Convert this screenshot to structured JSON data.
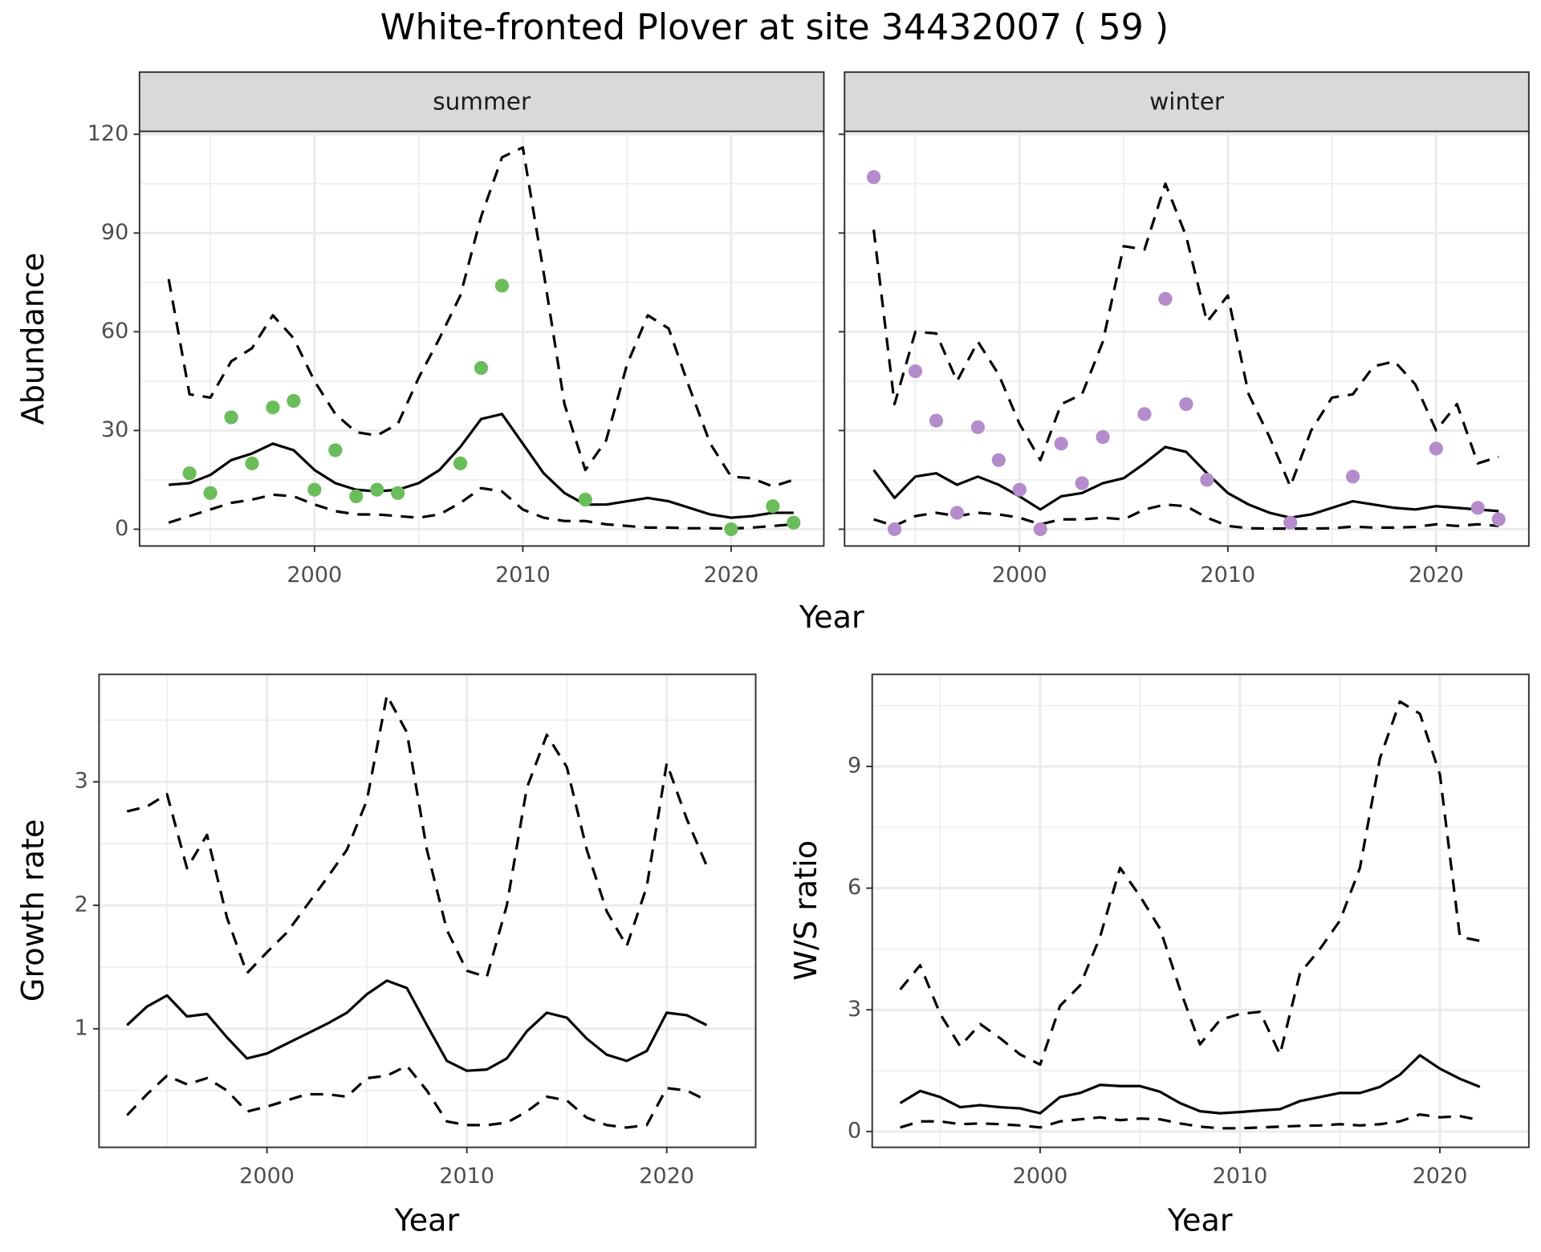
{
  "title": "White-fronted Plover at site 34432007 ( 59 )",
  "chart_data": [
    {
      "type": "line",
      "facet": "summer",
      "x_label": "Year",
      "y_label": "Abundance",
      "x": [
        1993,
        1994,
        1995,
        1996,
        1997,
        1998,
        1999,
        2000,
        2001,
        2002,
        2003,
        2004,
        2005,
        2006,
        2007,
        2008,
        2009,
        2010,
        2011,
        2012,
        2013,
        2014,
        2015,
        2016,
        2017,
        2018,
        2019,
        2020,
        2021,
        2022,
        2023
      ],
      "xlim": [
        1991.6,
        2024.45
      ],
      "xticks": [
        2000,
        2010,
        2020
      ],
      "ylim": [
        -5.1,
        120.9
      ],
      "yticks": [
        0,
        30,
        60,
        90,
        120
      ],
      "grid": true,
      "series": [
        {
          "style": "dashed",
          "color": "#000000",
          "values": [
            76,
            41,
            40,
            51,
            55,
            65,
            58,
            45,
            35,
            29.5,
            28.5,
            32,
            46,
            58,
            71,
            95,
            113,
            116,
            78,
            38,
            18,
            27,
            50,
            65,
            61,
            43,
            26,
            16,
            15.5,
            13,
            15
          ]
        },
        {
          "style": "solid",
          "color": "#000000",
          "values": [
            13.5,
            14,
            16.5,
            21,
            23,
            26,
            24,
            18,
            14,
            12,
            11.5,
            12,
            14,
            18,
            25,
            33.5,
            35,
            26,
            17,
            11,
            7.5,
            7.5,
            8.5,
            9.5,
            8.5,
            6.5,
            4.5,
            3.5,
            4,
            5,
            5
          ]
        },
        {
          "style": "dashed",
          "color": "#000000",
          "values": [
            2,
            4,
            6,
            8,
            9,
            10.5,
            10,
            7.5,
            5.5,
            4.5,
            4.5,
            4,
            3.5,
            4.5,
            8,
            12.5,
            11.5,
            6,
            3.5,
            2.5,
            2.5,
            1.5,
            1,
            0.5,
            0.5,
            0.3,
            0.3,
            0.2,
            0.5,
            1,
            1.5
          ]
        },
        {
          "style": "points",
          "color": "#6abd5a",
          "x": [
            1994,
            1995,
            1996,
            1997,
            1998,
            1999,
            2000,
            2001,
            2002,
            2003,
            2004,
            2007,
            2008,
            2009,
            2013,
            2020,
            2022,
            2023
          ],
          "values": [
            17,
            11,
            34,
            20,
            37,
            39,
            12,
            24,
            10,
            12,
            11,
            20,
            49,
            74,
            9,
            0,
            7,
            2
          ]
        }
      ]
    },
    {
      "type": "line",
      "facet": "winter",
      "sharey": true,
      "x": [
        1993,
        1994,
        1995,
        1996,
        1997,
        1998,
        1999,
        2000,
        2001,
        2002,
        2003,
        2004,
        2005,
        2006,
        2007,
        2008,
        2009,
        2010,
        2011,
        2012,
        2013,
        2014,
        2015,
        2016,
        2017,
        2018,
        2019,
        2020,
        2021,
        2022,
        2023
      ],
      "xlim": [
        1991.6,
        2024.45
      ],
      "xticks": [
        2000,
        2010,
        2020
      ],
      "grid": true,
      "series": [
        {
          "style": "dashed",
          "color": "#000000",
          "values": [
            91,
            38,
            60,
            59.5,
            45,
            57,
            47,
            32,
            21,
            38,
            41,
            57,
            86,
            85,
            105,
            89,
            63,
            71,
            41,
            28,
            13,
            30,
            40,
            41,
            49.5,
            51,
            44,
            30,
            38,
            20,
            22
          ]
        },
        {
          "style": "solid",
          "color": "#000000",
          "values": [
            18,
            9.5,
            16,
            17,
            13.5,
            16,
            13.5,
            10,
            6,
            10,
            11,
            14,
            15.5,
            20,
            25,
            23.5,
            17,
            11,
            7.5,
            5,
            3.5,
            4.5,
            6.5,
            8.5,
            7.5,
            6.5,
            6,
            7,
            6.5,
            6,
            5.5
          ]
        },
        {
          "style": "dashed",
          "color": "#000000",
          "values": [
            3,
            1,
            4,
            5,
            4,
            5,
            4.5,
            3.5,
            1.5,
            3,
            3,
            3.5,
            3,
            6,
            7.5,
            7,
            3.5,
            1,
            0.3,
            0.2,
            0.2,
            0.2,
            0.3,
            0.8,
            0.5,
            0.5,
            0.7,
            1.5,
            1,
            1.5,
            1
          ]
        },
        {
          "style": "points",
          "color": "#b48ccb",
          "x": [
            1993,
            1994,
            1995,
            1996,
            1997,
            1998,
            1999,
            2000,
            2001,
            2002,
            2003,
            2004,
            2006,
            2007,
            2008,
            2009,
            2013,
            2016,
            2020,
            2022,
            2023
          ],
          "values": [
            107,
            0,
            48,
            33,
            5,
            31,
            21,
            12,
            0,
            26,
            14,
            28,
            35,
            70,
            38,
            15,
            2,
            16,
            24.5,
            6.5,
            3
          ]
        }
      ]
    },
    {
      "type": "line",
      "x_label": "Year",
      "y_label": "Growth rate",
      "x": [
        1993,
        1994,
        1995,
        1996,
        1997,
        1998,
        1999,
        2000,
        2001,
        2002,
        2003,
        2004,
        2005,
        2006,
        2007,
        2008,
        2009,
        2010,
        2011,
        2012,
        2013,
        2014,
        2015,
        2016,
        2017,
        2018,
        2019,
        2020,
        2021,
        2022
      ],
      "xlim": [
        1991.6,
        2024.45
      ],
      "xticks": [
        2000,
        2010,
        2020
      ],
      "ylim": [
        0.04,
        3.87
      ],
      "yticks": [
        1,
        2,
        3
      ],
      "grid": true,
      "series": [
        {
          "style": "dashed",
          "color": "#000000",
          "values": [
            2.76,
            2.8,
            2.9,
            2.3,
            2.57,
            1.9,
            1.45,
            1.62,
            1.78,
            2.0,
            2.22,
            2.45,
            2.85,
            3.7,
            3.4,
            2.45,
            1.8,
            1.47,
            1.42,
            2.0,
            2.95,
            3.38,
            3.12,
            2.45,
            1.95,
            1.67,
            2.15,
            3.15,
            2.7,
            2.32
          ]
        },
        {
          "style": "solid",
          "color": "#000000",
          "values": [
            1.03,
            1.18,
            1.27,
            1.1,
            1.12,
            0.93,
            0.76,
            0.8,
            0.88,
            0.96,
            1.04,
            1.13,
            1.28,
            1.39,
            1.33,
            1.03,
            0.74,
            0.66,
            0.67,
            0.76,
            0.98,
            1.13,
            1.09,
            0.92,
            0.79,
            0.74,
            0.82,
            1.13,
            1.11,
            1.03
          ]
        },
        {
          "style": "dashed",
          "color": "#000000",
          "values": [
            0.3,
            0.47,
            0.62,
            0.55,
            0.6,
            0.5,
            0.33,
            0.37,
            0.42,
            0.47,
            0.47,
            0.45,
            0.6,
            0.62,
            0.7,
            0.5,
            0.25,
            0.22,
            0.22,
            0.24,
            0.33,
            0.45,
            0.42,
            0.28,
            0.22,
            0.2,
            0.22,
            0.52,
            0.5,
            0.42
          ]
        }
      ]
    },
    {
      "type": "line",
      "x_label": "Year",
      "y_label": "W/S ratio",
      "x": [
        1993,
        1994,
        1995,
        1996,
        1997,
        1998,
        1999,
        2000,
        2001,
        2002,
        2003,
        2004,
        2005,
        2006,
        2007,
        2008,
        2009,
        2010,
        2011,
        2012,
        2013,
        2014,
        2015,
        2016,
        2017,
        2018,
        2019,
        2020,
        2021,
        2022
      ],
      "xlim": [
        1991.6,
        2024.45
      ],
      "xticks": [
        2000,
        2010,
        2020
      ],
      "ylim": [
        -0.39,
        11.27
      ],
      "yticks": [
        0,
        3,
        6,
        9
      ],
      "grid": true,
      "series": [
        {
          "style": "dashed",
          "color": "#000000",
          "values": [
            3.5,
            4.1,
            2.9,
            2.1,
            2.65,
            2.3,
            1.9,
            1.65,
            3.1,
            3.6,
            4.8,
            6.5,
            5.8,
            5.0,
            3.5,
            2.15,
            2.75,
            2.9,
            2.95,
            1.9,
            3.9,
            4.5,
            5.2,
            6.5,
            9.2,
            10.6,
            10.3,
            8.8,
            4.8,
            4.7
          ]
        },
        {
          "style": "solid",
          "color": "#000000",
          "values": [
            0.7,
            1.0,
            0.85,
            0.6,
            0.65,
            0.6,
            0.57,
            0.45,
            0.85,
            0.95,
            1.15,
            1.12,
            1.12,
            0.98,
            0.7,
            0.5,
            0.45,
            0.48,
            0.52,
            0.55,
            0.75,
            0.85,
            0.95,
            0.95,
            1.1,
            1.4,
            1.88,
            1.55,
            1.3,
            1.1
          ]
        },
        {
          "style": "dashed",
          "color": "#000000",
          "values": [
            0.1,
            0.25,
            0.25,
            0.18,
            0.2,
            0.18,
            0.15,
            0.1,
            0.25,
            0.3,
            0.35,
            0.28,
            0.32,
            0.3,
            0.2,
            0.12,
            0.08,
            0.08,
            0.1,
            0.12,
            0.14,
            0.15,
            0.18,
            0.15,
            0.18,
            0.25,
            0.42,
            0.35,
            0.38,
            0.28
          ]
        }
      ]
    }
  ]
}
